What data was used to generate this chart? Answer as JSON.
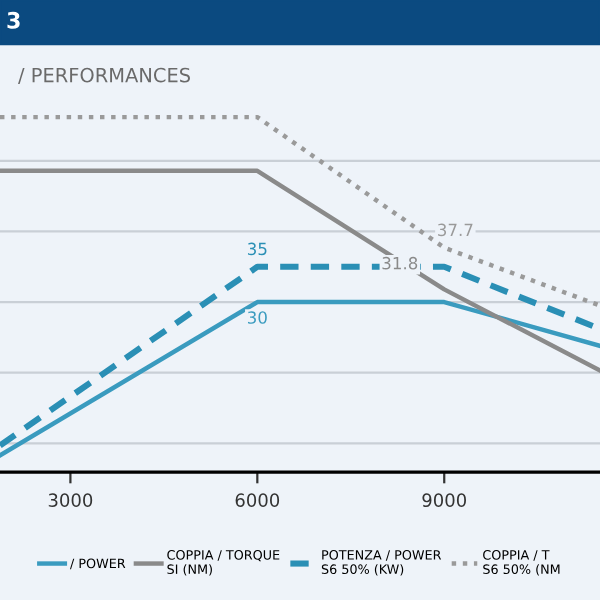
{
  "chart_data": {
    "type": "line",
    "title": "3",
    "subtitle": "/ PERFORMANCES",
    "x": [
      1870,
      6000,
      9000,
      11500
    ],
    "xlim": [
      1870,
      11500
    ],
    "xticks": [
      3000,
      6000,
      9000
    ],
    "tick_labels": "x",
    "grid": "y",
    "legend": "bottom",
    "marker": "none",
    "series": [
      {
        "name": "/ POWER",
        "color": "#3a9bbf",
        "line_style": "solid",
        "values": [
          8.3,
          30,
          30,
          23.8
        ],
        "value_labels": [
          null,
          "30",
          null,
          null
        ]
      },
      {
        "name": "COPPIA / TORQUE\nSI (NM)",
        "color": "#8a8a8a",
        "line_style": "solid",
        "values": [
          48.6,
          48.6,
          31.8,
          20.3
        ],
        "value_labels": [
          null,
          null,
          "31.8",
          null
        ]
      },
      {
        "name": "POTENZA / POWER\nS6 50% (KW)",
        "color": "#2a8fb5",
        "line_style": "dashed",
        "values": [
          9.7,
          35,
          35,
          26.2
        ],
        "value_labels": [
          null,
          "35",
          null,
          null
        ]
      },
      {
        "name": "COPPIA / T\nS6 50% (NM",
        "color": "#9a9a9a",
        "line_style": "dotted",
        "values": [
          56.2,
          56.2,
          37.7,
          29.5
        ],
        "value_labels": [
          null,
          null,
          "37.7",
          null
        ]
      }
    ]
  }
}
